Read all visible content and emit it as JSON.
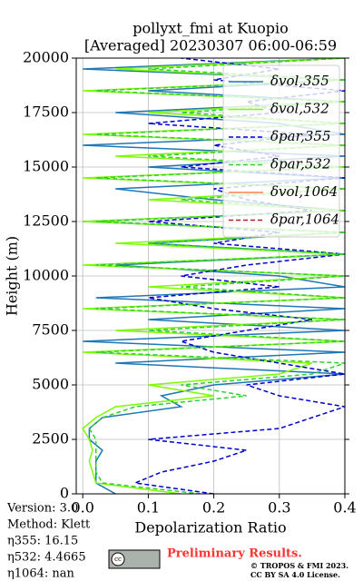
{
  "chart_data": {
    "type": "line",
    "title": "pollyxt_fmi at Kuopio",
    "subtitle": "[Averaged] 20230307 06:00-06:59",
    "x_label": "Depolarization Ratio",
    "y_label": "Height (m)",
    "xlim": [
      -0.01,
      0.4
    ],
    "ylim": [
      0,
      20000
    ],
    "xticks": [
      {
        "value": 0,
        "label": "0.0"
      },
      0.1,
      0.2,
      0.3,
      0.4
    ],
    "yticks": [
      0,
      2500,
      5000,
      7500,
      10000,
      12500,
      15000,
      17500,
      20000
    ],
    "grid": true,
    "legend": "upper right",
    "heights": [
      0,
      500,
      1000,
      1500,
      2000,
      2500,
      3000,
      3500,
      4000,
      4500,
      5000,
      5500,
      6000,
      6500,
      7000,
      7500,
      8000,
      8500,
      9000,
      9500,
      10000,
      10500,
      11000,
      11500,
      12000,
      12500,
      13000,
      13500,
      14000,
      14500,
      15000,
      15500,
      16000,
      16500,
      17000,
      17500,
      18000,
      18500,
      19000,
      19500,
      20000
    ],
    "series": [
      {
        "name": "δvol,355",
        "color": "#1f77b4",
        "linestyle": "solid",
        "values": [
          0.05,
          0.02,
          0.02,
          0.02,
          0.03,
          0.01,
          0.01,
          0.03,
          0.15,
          0.12,
          0.2,
          0.4,
          0.05,
          0.4,
          0.0,
          0.4,
          0.1,
          0.4,
          0.02,
          0.4,
          0.3,
          0.05,
          0.4,
          0.1,
          0.4,
          0.0,
          0.4,
          0.2,
          0.05,
          0.4,
          0.1,
          0.4,
          0.0,
          0.4,
          0.3,
          0.05,
          0.4,
          0.1,
          0.4,
          0.0,
          0.4
        ]
      },
      {
        "name": "δvol,532",
        "color": "#7cfc00",
        "linestyle": "solid",
        "values": [
          0.15,
          0.02,
          0.015,
          0.01,
          0.015,
          0.01,
          0.0,
          0.02,
          0.05,
          0.2,
          0.1,
          0.3,
          0.35,
          0.0,
          0.4,
          0.05,
          0.4,
          0.0,
          0.4,
          0.1,
          0.4,
          0.0,
          0.4,
          0.05,
          0.4,
          0.0,
          0.4,
          0.1,
          0.4,
          0.0,
          0.4,
          0.05,
          0.4,
          0.0,
          0.4,
          0.1,
          0.4,
          0.0,
          0.4,
          0.05,
          0.4
        ]
      },
      {
        "name": "δpar,355",
        "color": "#0000cd",
        "linestyle": "dashed",
        "values": [
          0.2,
          0.08,
          0.12,
          0.2,
          0.25,
          0.1,
          0.3,
          0.35,
          0.4,
          0.3,
          0.25,
          0.4,
          0.3,
          0.2,
          0.15,
          0.25,
          0.35,
          0.2,
          0.1,
          0.3,
          0.15,
          0.25,
          0.4,
          0.2,
          0.3,
          0.1,
          0.35,
          0.25,
          0.2,
          0.4,
          0.15,
          0.3,
          0.2,
          0.35,
          0.1,
          0.3,
          0.25,
          0.4,
          0.2,
          0.3,
          0.15
        ]
      },
      {
        "name": "δpar,532",
        "color": "#32cd32",
        "linestyle": "dashed",
        "values": [
          0.18,
          0.03,
          0.02,
          0.02,
          0.02,
          0.02,
          0.01,
          0.03,
          0.08,
          0.25,
          0.15,
          0.35,
          0.4,
          0.02,
          0.4,
          0.1,
          0.4,
          0.02,
          0.4,
          0.15,
          0.4,
          0.02,
          0.4,
          0.1,
          0.4,
          0.02,
          0.4,
          0.15,
          0.4,
          0.02,
          0.4,
          0.1,
          0.4,
          0.02,
          0.4,
          0.15,
          0.4,
          0.02,
          0.4,
          0.1,
          0.4
        ]
      },
      {
        "name": "δvol,1064",
        "color": "#ff7f50",
        "linestyle": "solid",
        "values": [
          null,
          null,
          null,
          null,
          null,
          null,
          null,
          null,
          null,
          null,
          null,
          null,
          null,
          null,
          null,
          null,
          null,
          null,
          null,
          null,
          null,
          null,
          null,
          null,
          null,
          null,
          null,
          null,
          null,
          null,
          null,
          null,
          null,
          null,
          null,
          null,
          null,
          null,
          null,
          null,
          null
        ]
      },
      {
        "name": "δpar,1064",
        "color": "#b22222",
        "linestyle": "dashed",
        "values": [
          null,
          null,
          null,
          null,
          null,
          null,
          null,
          null,
          null,
          null,
          null,
          null,
          null,
          null,
          null,
          null,
          null,
          null,
          null,
          null,
          null,
          null,
          null,
          null,
          null,
          null,
          null,
          null,
          null,
          null,
          null,
          null,
          null,
          null,
          null,
          null,
          null,
          null,
          null,
          null,
          null
        ]
      }
    ],
    "info": [
      "Version: 3.0",
      "Method: Klett",
      "η355:  16.15",
      "η532: 4.4665",
      "η1064:    nan"
    ],
    "badge": "Preliminary Results.",
    "copyright": [
      "© TROPOS & FMI 2023.",
      "CC BY SA 4.0 License."
    ]
  }
}
